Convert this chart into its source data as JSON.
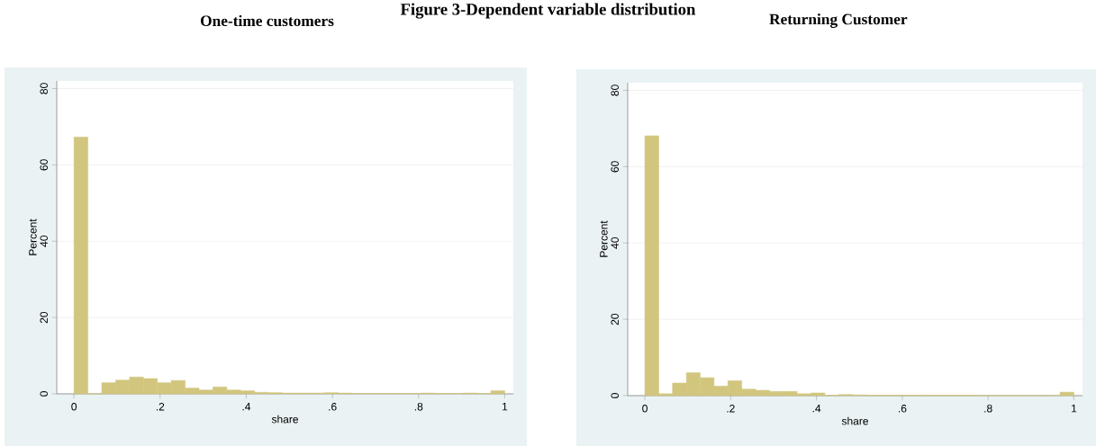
{
  "chart_data": [
    {
      "type": "histogram",
      "title": "One-time customers",
      "annotations": [
        "Figure 3-Dependent variable distribution"
      ],
      "xlabel": "share",
      "ylabel": "Percent",
      "color": "#d2c67f",
      "bins": [
        0,
        0.0323,
        0.0645,
        0.0968,
        0.129,
        0.1613,
        0.1935,
        0.2258,
        0.2581,
        0.2903,
        0.3226,
        0.3548,
        0.3871,
        0.4194,
        0.4516,
        0.4839,
        0.5161,
        0.5484,
        0.5806,
        0.6129,
        0.6452,
        0.6774,
        0.7097,
        0.7419,
        0.7742,
        0.8065,
        0.8387,
        0.871,
        0.9032,
        0.9355,
        0.9677,
        1
      ],
      "values": [
        67.3,
        0,
        2.9,
        3.6,
        4.4,
        4.0,
        2.9,
        3.5,
        1.5,
        1.0,
        1.8,
        1.0,
        0.8,
        0.4,
        0.3,
        0.2,
        0.2,
        0.2,
        0.3,
        0.2,
        0.1,
        0.1,
        0.1,
        0.1,
        0.1,
        0.2,
        0.1,
        0.1,
        0.2,
        0.1,
        0.8
      ],
      "xlim": [
        -0.04,
        1.02
      ],
      "ylim": [
        0,
        82
      ],
      "xticks": [
        0,
        {
          "value": 0.2,
          "label": ".2"
        },
        {
          "value": 0.4,
          "label": ".4"
        },
        {
          "value": 0.6,
          "label": ".6"
        },
        {
          "value": 0.8,
          "label": ".8"
        },
        1
      ],
      "yticks": [
        0,
        20,
        40,
        60,
        80
      ],
      "grid": "y"
    },
    {
      "type": "histogram",
      "title": "Returning Customer",
      "xlabel": "share",
      "ylabel": "Percent",
      "color": "#d2c67f",
      "bins": [
        0,
        0.0323,
        0.0645,
        0.0968,
        0.129,
        0.1613,
        0.1935,
        0.2258,
        0.2581,
        0.2903,
        0.3226,
        0.3548,
        0.3871,
        0.4194,
        0.4516,
        0.4839,
        0.5161,
        0.5484,
        0.5806,
        0.6129,
        0.6452,
        0.6774,
        0.7097,
        0.7419,
        0.7742,
        0.8065,
        0.8387,
        0.871,
        0.9032,
        0.9355,
        0.9677,
        1
      ],
      "values": [
        68.1,
        0.5,
        3.3,
        6.0,
        4.7,
        2.5,
        3.9,
        1.7,
        1.4,
        1.1,
        1.1,
        0.5,
        0.7,
        0.1,
        0.3,
        0.2,
        0.1,
        0.1,
        0.1,
        0.1,
        0.1,
        0.1,
        0.1,
        0.1,
        0,
        0,
        0,
        0,
        0,
        0,
        0.9
      ],
      "xlim": [
        -0.04,
        1.02
      ],
      "ylim": [
        0,
        82
      ],
      "xticks": [
        0,
        {
          "value": 0.2,
          "label": ".2"
        },
        {
          "value": 0.4,
          "label": ".4"
        },
        {
          "value": 0.6,
          "label": ".6"
        },
        {
          "value": 0.8,
          "label": ".8"
        },
        1
      ],
      "yticks": [
        0,
        20,
        40,
        60,
        80
      ],
      "grid": "y"
    }
  ]
}
